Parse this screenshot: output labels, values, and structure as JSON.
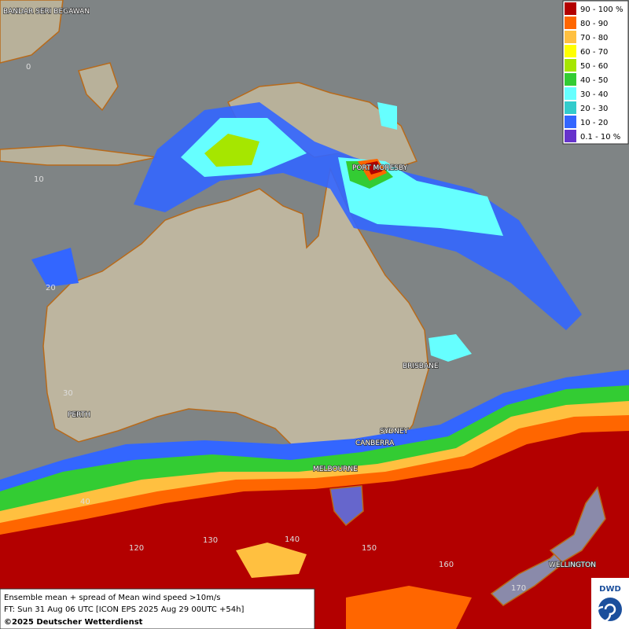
{
  "caption": {
    "line1": "Ensemble mean + spread of Mean wind speed >10m/s",
    "line2": "FT: Sun 31 Aug 06 UTC [ICON EPS 2025 Aug 29 00UTC +54h]",
    "line3": "©2025 Deutscher Wetterdienst"
  },
  "logo": "DWD",
  "legend": [
    {
      "label": "90 - 100 %",
      "color": "#b30000"
    },
    {
      "label": "80 - 90",
      "color": "#ff6600"
    },
    {
      "label": "70 - 80",
      "color": "#ffc040"
    },
    {
      "label": "60 - 70",
      "color": "#ffff00"
    },
    {
      "label": "50 - 60",
      "color": "#a6e600"
    },
    {
      "label": "40 - 50",
      "color": "#33cc33"
    },
    {
      "label": "30 - 40",
      "color": "#66ffff"
    },
    {
      "label": "20 - 30",
      "color": "#33cccc"
    },
    {
      "label": "10 - 20",
      "color": "#3366ff"
    },
    {
      "label": "0.1 - 10 %",
      "color": "#6633cc"
    }
  ],
  "cities": [
    "BANDAR SERI BEGAWAN",
    "PORT MORESBY",
    "BRISBANE",
    "PERTH",
    "SYDNEY",
    "CANBERRA",
    "MELBOURNE",
    "WELLINGTON"
  ],
  "latitudes": [
    "0",
    "10",
    "20",
    "30",
    "40"
  ],
  "longitudes": [
    "120",
    "130",
    "140",
    "150",
    "160",
    "170"
  ]
}
